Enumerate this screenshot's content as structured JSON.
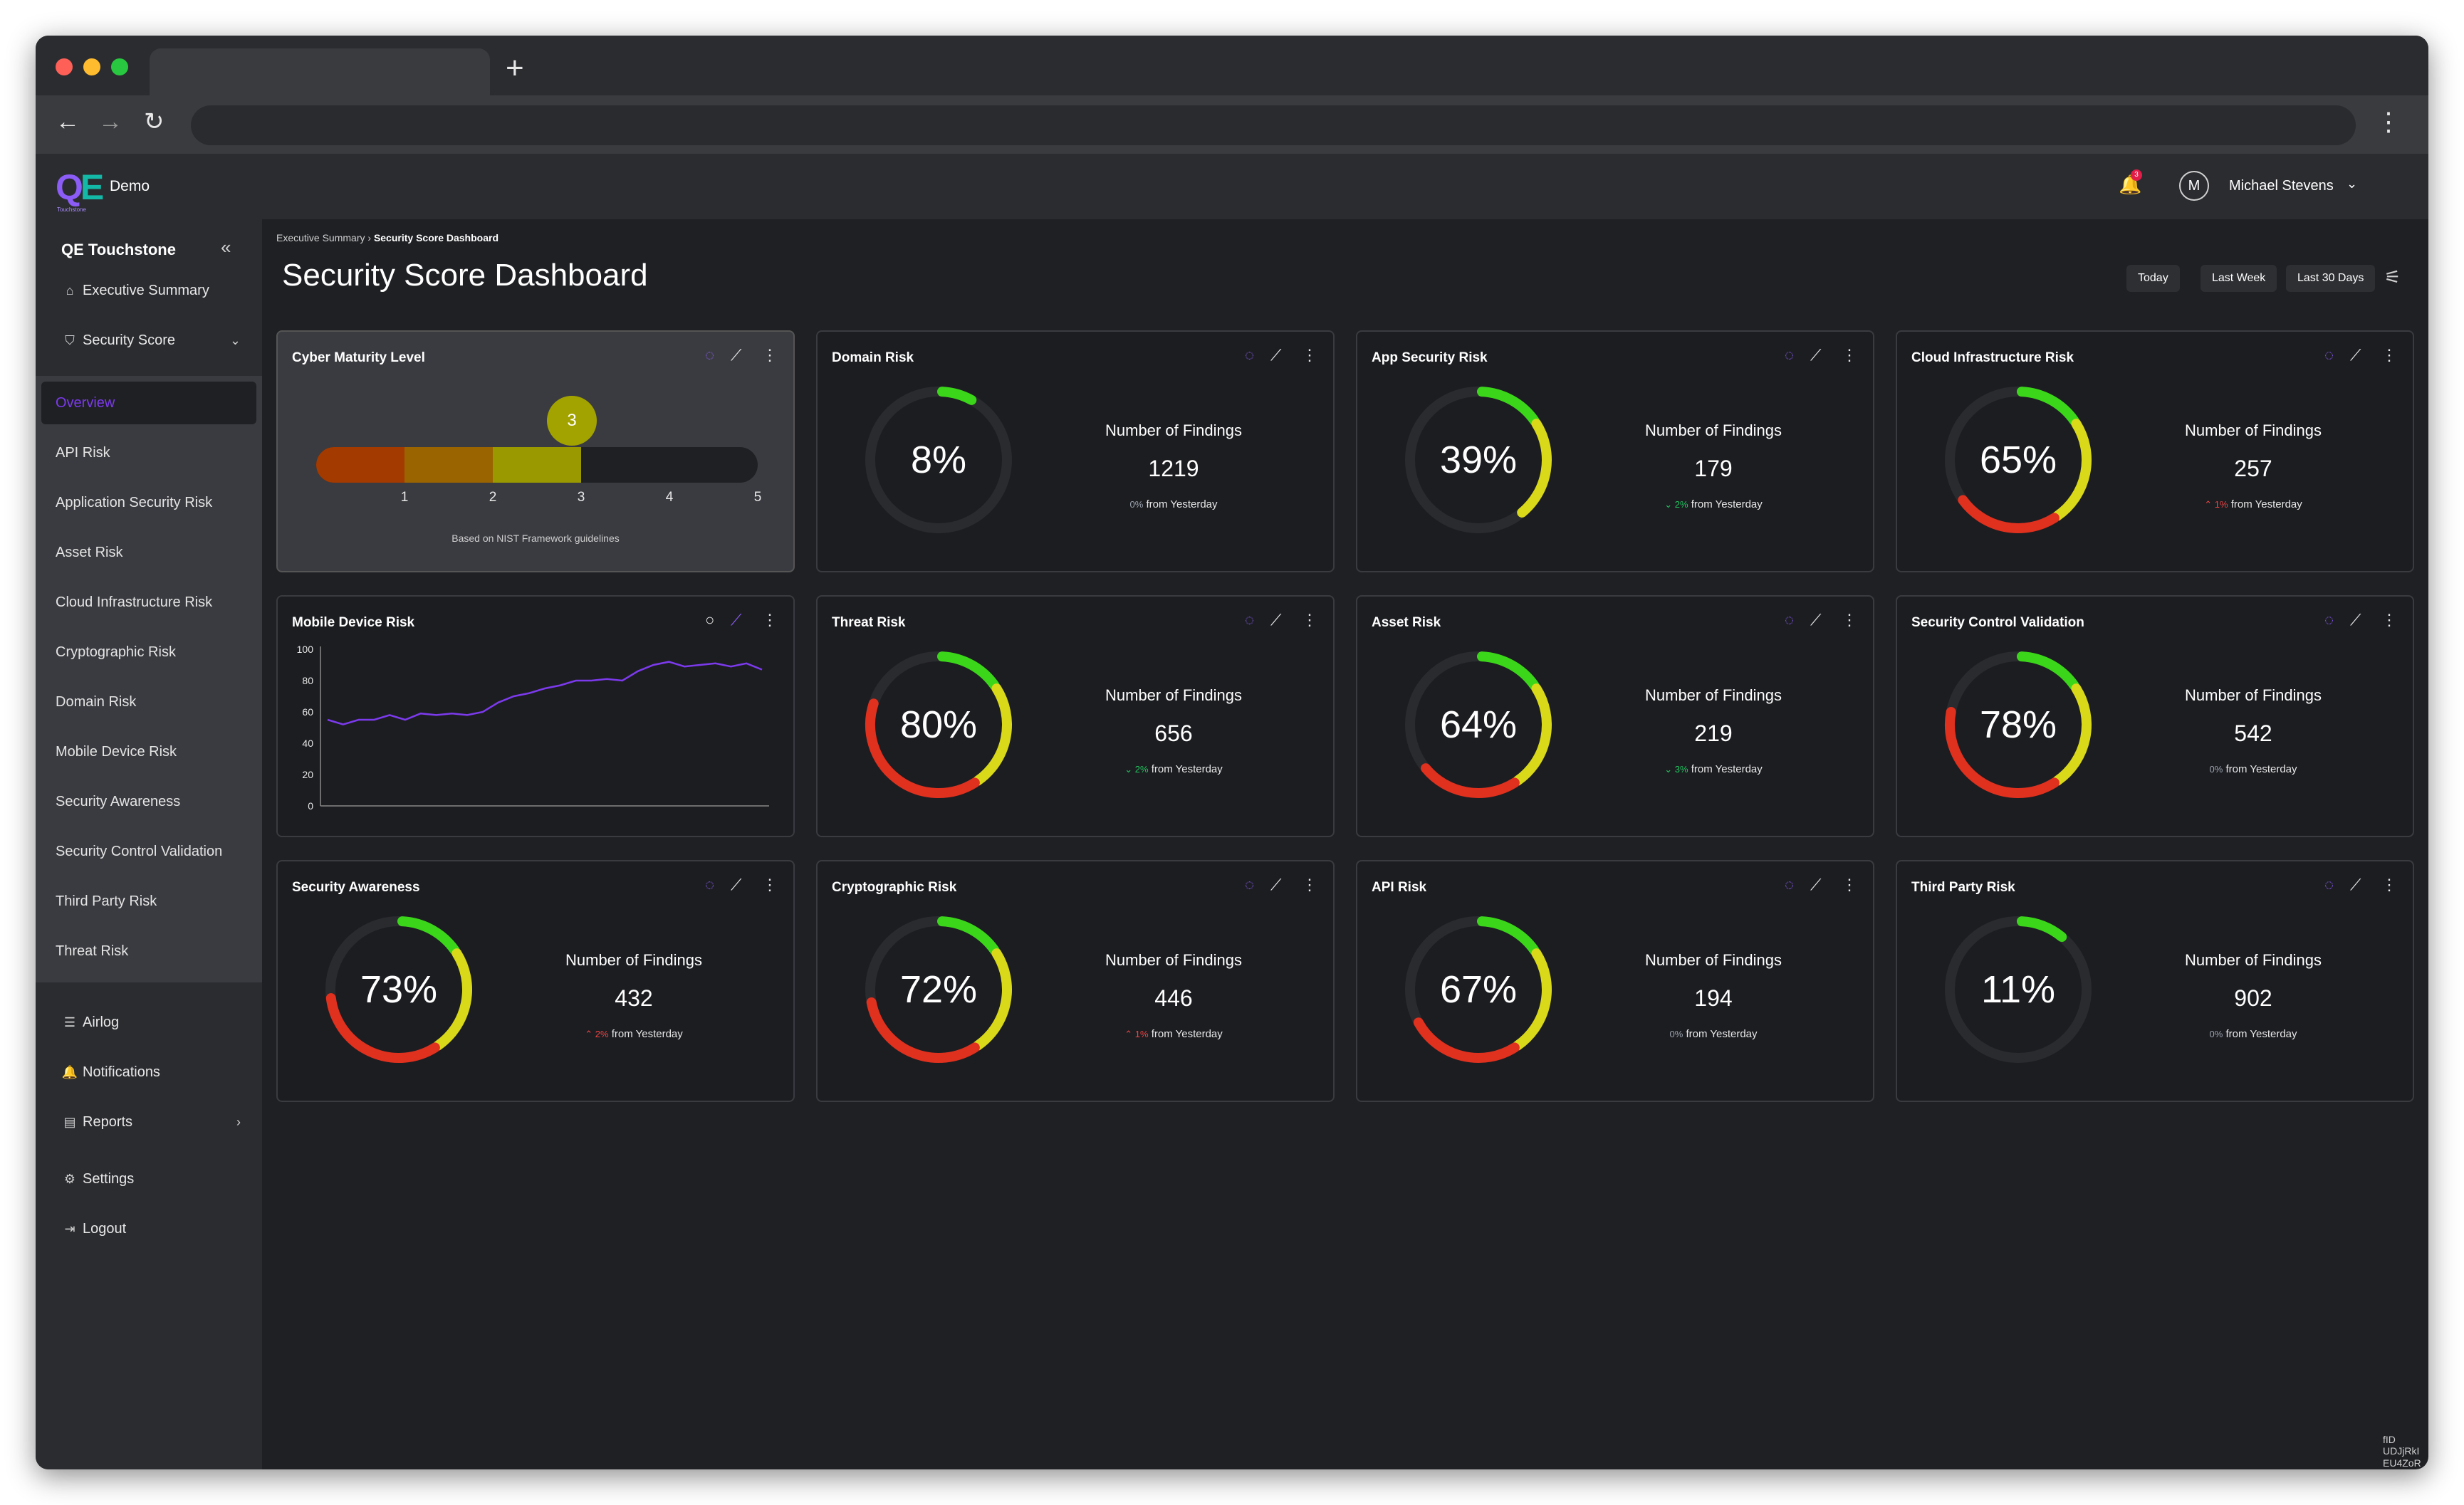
{
  "browser": {
    "new_tab": "+"
  },
  "app": {
    "logo": "QE",
    "logo_sub": "Touchstone",
    "env": "Demo",
    "notification_count": "3",
    "user_initial": "M",
    "user_name": "Michael Stevens"
  },
  "sidebar": {
    "title": "QE Touchstone",
    "items": [
      {
        "label": "Executive Summary",
        "icon": "home-icon"
      },
      {
        "label": "Security Score",
        "icon": "shield-icon"
      }
    ],
    "submenu": [
      "Overview",
      "API Risk",
      "Application Security Risk",
      "Asset Risk",
      "Cloud Infrastructure Risk",
      "Cryptographic Risk",
      "Domain Risk",
      "Mobile Device Risk",
      "Security Awareness",
      "Security Control Validation",
      "Third Party Risk",
      "Threat Risk"
    ],
    "bottom_items": [
      {
        "label": "Airlog",
        "icon": "list-icon"
      },
      {
        "label": "Notifications",
        "icon": "bell-icon"
      },
      {
        "label": "Reports",
        "icon": "document-icon"
      },
      {
        "label": "Settings",
        "icon": "gear-icon"
      },
      {
        "label": "Logout",
        "icon": "logout-icon"
      }
    ]
  },
  "breadcrumb": {
    "parent": "Executive Summary",
    "current": "Security Score Dashboard"
  },
  "page_title": "Security Score Dashboard",
  "ranges": [
    "Today",
    "Last Week",
    "Last 30 Days"
  ],
  "maturity": {
    "title": "Cyber Maturity Level",
    "level": 3,
    "level_label": "3",
    "ticks": [
      "1",
      "2",
      "3",
      "4",
      "5"
    ],
    "footnote": "Based on NIST Framework guidelines",
    "colors": [
      "#a33a00",
      "#9a6400",
      "#9a9a00"
    ]
  },
  "mobile": {
    "title": "Mobile Device Risk",
    "y_ticks": [
      "100",
      "80",
      "60",
      "40",
      "20",
      "0"
    ]
  },
  "findings_label": "Number of Findings",
  "from_yesterday": "from Yesterday",
  "cards": [
    {
      "title": "Domain Risk",
      "score": "8%",
      "value": 8,
      "findings": "1219",
      "delta": "0%",
      "dir": "neutral"
    },
    {
      "title": "App Security Risk",
      "score": "39%",
      "value": 39,
      "findings": "179",
      "delta": "2%",
      "dir": "down"
    },
    {
      "title": "Cloud Infrastructure Risk",
      "score": "65%",
      "value": 65,
      "findings": "257",
      "delta": "1%",
      "dir": "up"
    },
    {
      "title": "Threat Risk",
      "score": "80%",
      "value": 80,
      "findings": "656",
      "delta": "2%",
      "dir": "down"
    },
    {
      "title": "Asset Risk",
      "score": "64%",
      "value": 64,
      "findings": "219",
      "delta": "3%",
      "dir": "down"
    },
    {
      "title": "Security Control Validation",
      "score": "78%",
      "value": 78,
      "findings": "542",
      "delta": "0%",
      "dir": "neutral"
    },
    {
      "title": "Security Awareness",
      "score": "73%",
      "value": 73,
      "findings": "432",
      "delta": "2%",
      "dir": "up"
    },
    {
      "title": "Cryptographic Risk",
      "score": "72%",
      "value": 72,
      "findings": "446",
      "delta": "1%",
      "dir": "up"
    },
    {
      "title": "API Risk",
      "score": "67%",
      "value": 67,
      "findings": "194",
      "delta": "0%",
      "dir": "neutral"
    },
    {
      "title": "Third Party Risk",
      "score": "11%",
      "value": 11,
      "findings": "902",
      "delta": "0%",
      "dir": "neutral"
    }
  ],
  "chart_data": {
    "type": "line",
    "title": "Mobile Device Risk",
    "xlabel": "",
    "ylabel": "",
    "ylim": [
      0,
      100
    ],
    "series": [
      {
        "values": [
          55,
          52,
          55,
          55,
          58,
          55,
          59,
          58,
          59,
          58,
          60,
          66,
          70,
          72,
          75,
          77,
          80,
          80,
          81,
          80,
          86,
          90,
          92,
          89,
          90,
          91,
          89,
          91,
          87
        ]
      }
    ]
  },
  "corner_id": "fID UDJjRkI EU4ZoR",
  "colors": {
    "accent": "#8b5cf6",
    "gauge_red": "#e0301e",
    "gauge_yellow": "#d9d919",
    "gauge_green": "#3bd61a"
  }
}
